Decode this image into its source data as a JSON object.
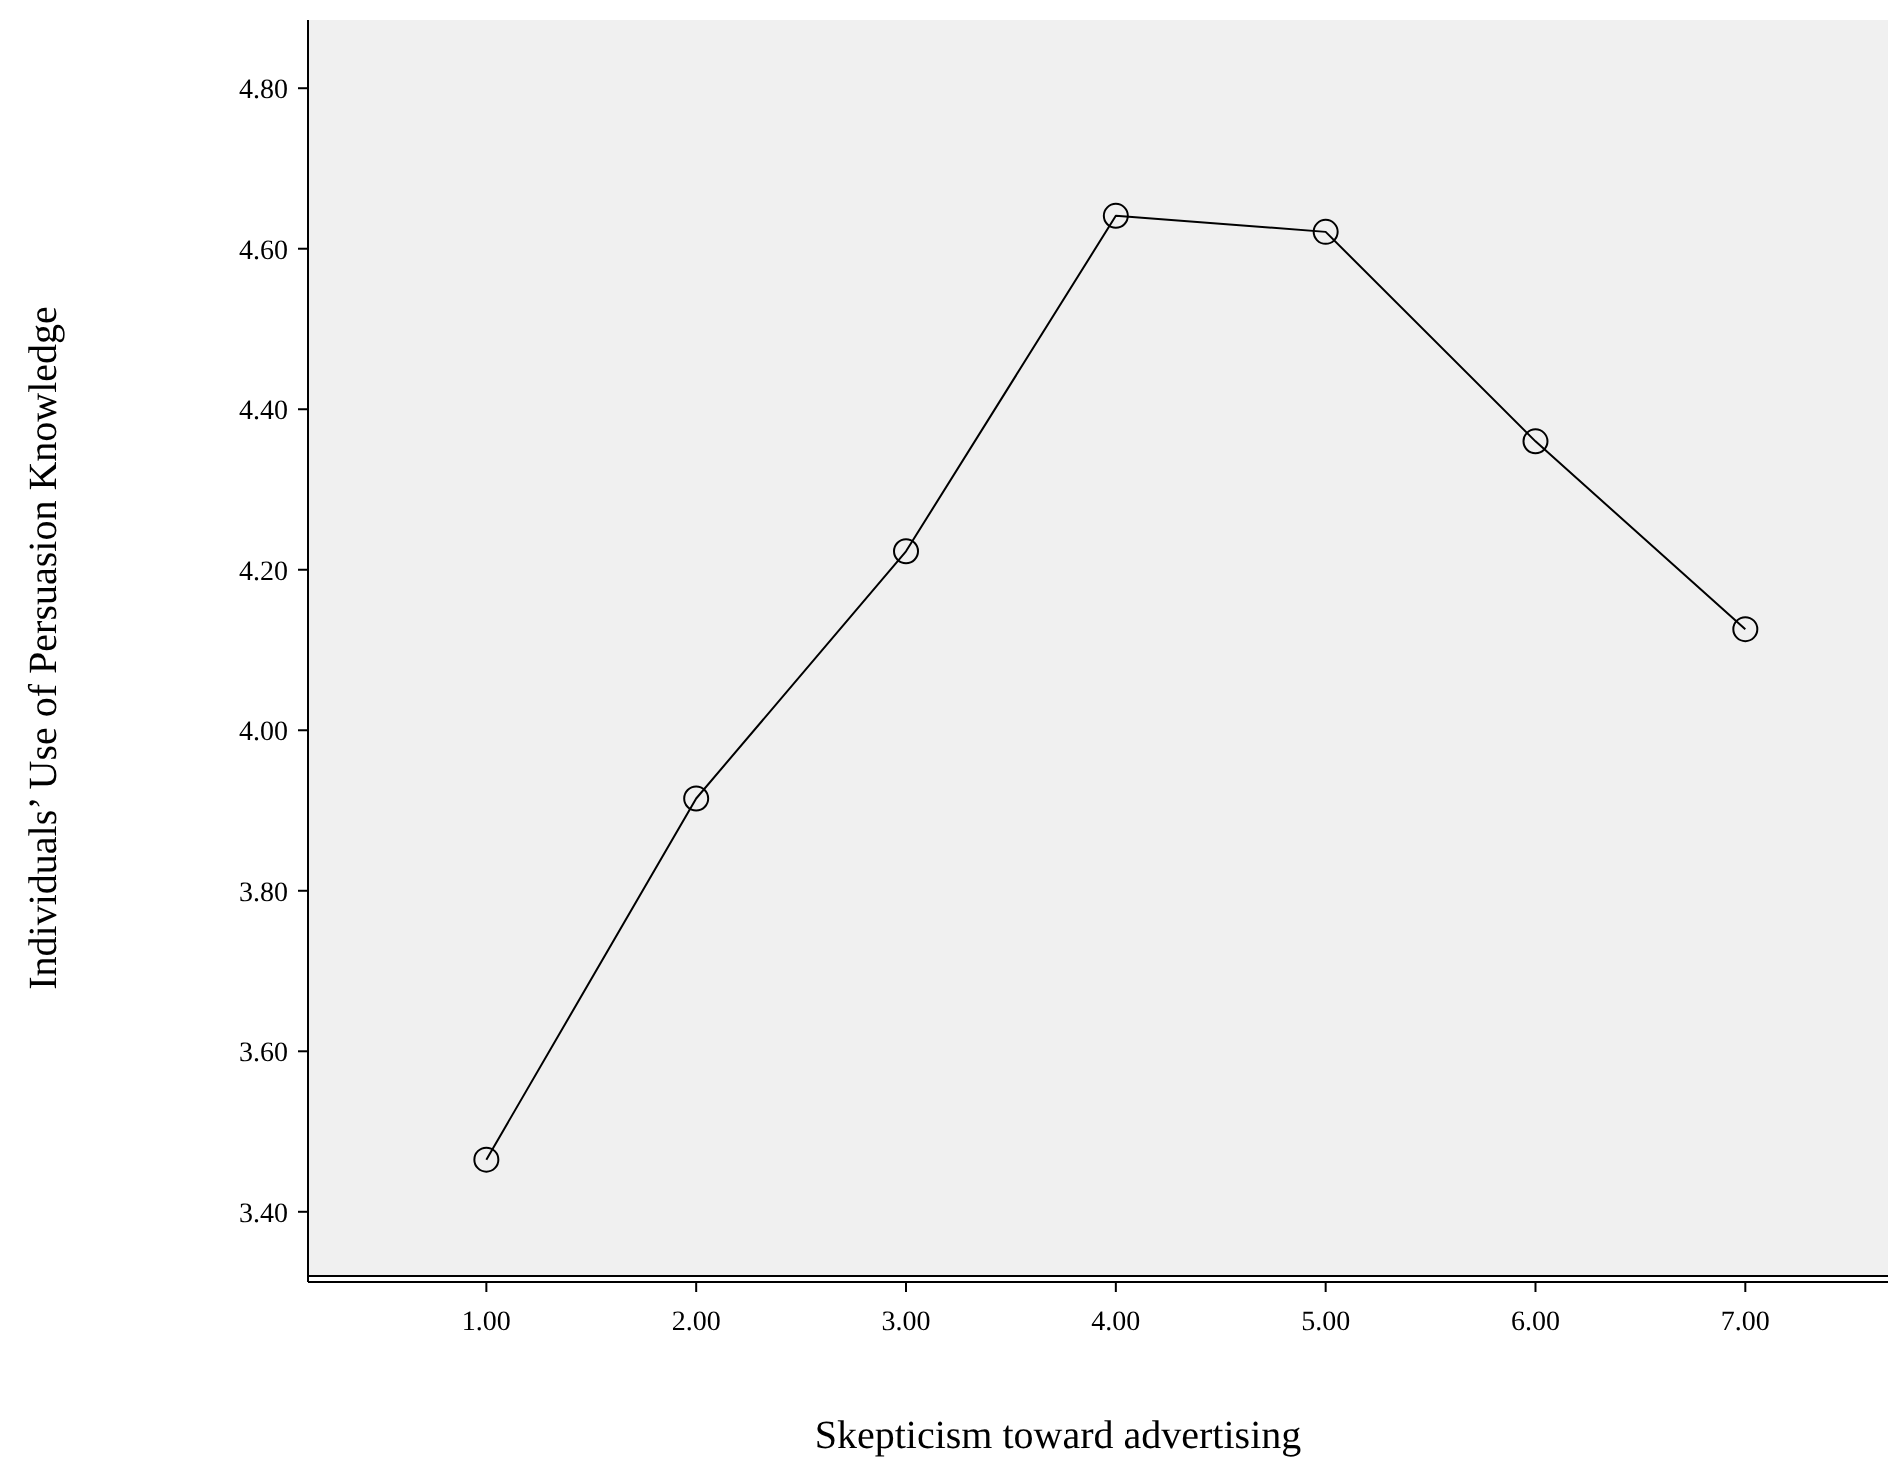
{
  "chart_data": {
    "type": "line",
    "xlabel": "Skepticism toward advertising",
    "ylabel": "Individuals’ Use of Persuasion Knowledge",
    "x": [
      1,
      2,
      3,
      4,
      5,
      6,
      7
    ],
    "series": [
      {
        "color": "#000000",
        "values": [
          3.465,
          3.915,
          4.223,
          4.641,
          4.621,
          4.36,
          4.126
        ]
      }
    ],
    "xlim": [
      0.15,
      7.68
    ],
    "ylim": [
      3.32,
      4.885
    ],
    "xticks": [
      {
        "value": 1,
        "label": "1.00"
      },
      {
        "value": 2,
        "label": "2.00"
      },
      {
        "value": 3,
        "label": "3.00"
      },
      {
        "value": 4,
        "label": "4.00"
      },
      {
        "value": 5,
        "label": "5.00"
      },
      {
        "value": 6,
        "label": "6.00"
      },
      {
        "value": 7,
        "label": "7.00"
      }
    ],
    "yticks": [
      {
        "value": 3.4,
        "label": "3.40"
      },
      {
        "value": 3.6,
        "label": "3.60"
      },
      {
        "value": 3.8,
        "label": "3.80"
      },
      {
        "value": 4,
        "label": "4.00"
      },
      {
        "value": 4.2,
        "label": "4.20"
      },
      {
        "value": 4.4,
        "label": "4.40"
      },
      {
        "value": 4.6,
        "label": "4.60"
      },
      {
        "value": 4.8,
        "label": "4.80"
      }
    ],
    "grid": false,
    "marker": "circle",
    "line_style": "solid"
  }
}
